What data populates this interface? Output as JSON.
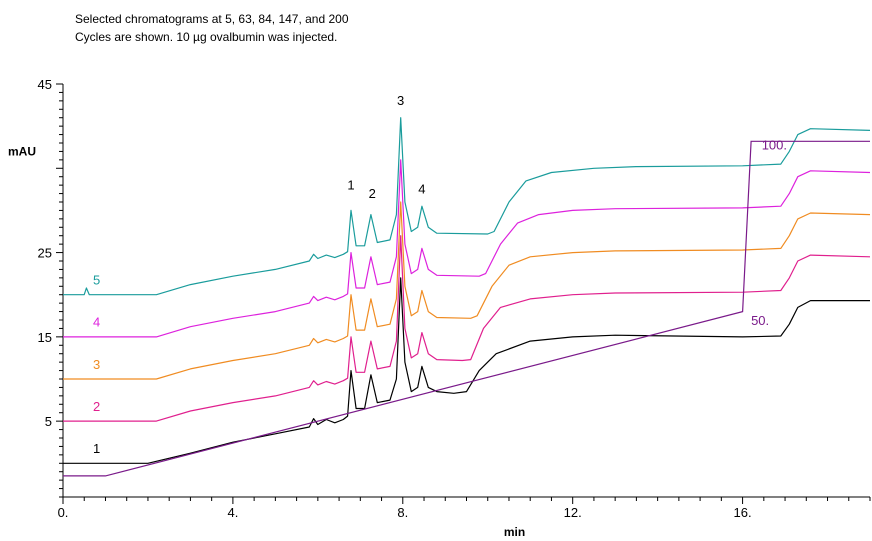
{
  "header": {
    "line1": "Selected chromatograms at 5, 63, 84, 147, and 200",
    "line2": "Cycles are shown. 10 µg ovalbumin was injected."
  },
  "chart_data": {
    "type": "line",
    "xlabel": "min",
    "ylabel": "mAU",
    "xlim": [
      0,
      19
    ],
    "ylim": [
      -4,
      45
    ],
    "xticks": [
      "0.",
      "4.",
      "8.",
      "12.",
      "16."
    ],
    "yticks": [
      "5",
      "15",
      "25",
      "45"
    ],
    "grid": false,
    "peak_labels": [
      {
        "text": "1",
        "x": 6.78,
        "y": 32.5
      },
      {
        "text": "2",
        "x": 7.28,
        "y": 31.5
      },
      {
        "text": "3",
        "x": 7.95,
        "y": 42.5
      },
      {
        "text": "4",
        "x": 8.45,
        "y": 32.0
      }
    ],
    "series": [
      {
        "name": "1",
        "color": "#000000",
        "baseline": 0,
        "points": [
          [
            0,
            0
          ],
          [
            2,
            0
          ],
          [
            3,
            1.2
          ],
          [
            4,
            2.5
          ],
          [
            5,
            3.5
          ],
          [
            5.8,
            4.3
          ],
          [
            5.9,
            5.3
          ],
          [
            6.0,
            4.6
          ],
          [
            6.2,
            5.2
          ],
          [
            6.4,
            4.8
          ],
          [
            6.6,
            5.2
          ],
          [
            6.7,
            5.6
          ],
          [
            6.78,
            11
          ],
          [
            6.9,
            6.5
          ],
          [
            7.1,
            6.5
          ],
          [
            7.25,
            10.5
          ],
          [
            7.4,
            7.2
          ],
          [
            7.7,
            7.5
          ],
          [
            7.85,
            10
          ],
          [
            7.95,
            22
          ],
          [
            8.05,
            12
          ],
          [
            8.2,
            8.5
          ],
          [
            8.35,
            9
          ],
          [
            8.45,
            11.5
          ],
          [
            8.6,
            9
          ],
          [
            8.8,
            8.5
          ],
          [
            9.2,
            8.3
          ],
          [
            9.5,
            8.5
          ],
          [
            9.8,
            11
          ],
          [
            10.2,
            13
          ],
          [
            11,
            14.5
          ],
          [
            12,
            15
          ],
          [
            13,
            15.2
          ],
          [
            16,
            15
          ],
          [
            16.9,
            15.1
          ],
          [
            17.1,
            16.5
          ],
          [
            17.3,
            18.5
          ],
          [
            17.6,
            19.3
          ],
          [
            19,
            19.3
          ]
        ]
      },
      {
        "name": "2",
        "color": "#e0208e",
        "baseline": 5,
        "points": [
          [
            0,
            5
          ],
          [
            2.2,
            5
          ],
          [
            3,
            6.2
          ],
          [
            4,
            7.2
          ],
          [
            5,
            8
          ],
          [
            5.8,
            9
          ],
          [
            5.9,
            9.8
          ],
          [
            6.0,
            9.3
          ],
          [
            6.2,
            9.7
          ],
          [
            6.4,
            9.4
          ],
          [
            6.6,
            9.8
          ],
          [
            6.7,
            10.1
          ],
          [
            6.78,
            15
          ],
          [
            6.9,
            10.8
          ],
          [
            7.1,
            10.8
          ],
          [
            7.25,
            14.5
          ],
          [
            7.4,
            11.2
          ],
          [
            7.7,
            11.5
          ],
          [
            7.85,
            14.5
          ],
          [
            7.95,
            27
          ],
          [
            8.05,
            16
          ],
          [
            8.2,
            12.5
          ],
          [
            8.35,
            13
          ],
          [
            8.45,
            15.5
          ],
          [
            8.6,
            13
          ],
          [
            8.8,
            12.3
          ],
          [
            9.4,
            12.2
          ],
          [
            9.6,
            12.3
          ],
          [
            9.9,
            16
          ],
          [
            10.3,
            18.5
          ],
          [
            11,
            19.5
          ],
          [
            12,
            20
          ],
          [
            13,
            20.2
          ],
          [
            16,
            20.3
          ],
          [
            16.9,
            20.5
          ],
          [
            17.1,
            22
          ],
          [
            17.3,
            24
          ],
          [
            17.6,
            24.7
          ],
          [
            19,
            24.5
          ]
        ]
      },
      {
        "name": "3",
        "color": "#f08c22",
        "baseline": 10,
        "points": [
          [
            0,
            10
          ],
          [
            2.2,
            10
          ],
          [
            3,
            11.2
          ],
          [
            4,
            12.2
          ],
          [
            5,
            13
          ],
          [
            5.8,
            14
          ],
          [
            5.9,
            14.8
          ],
          [
            6.0,
            14.3
          ],
          [
            6.2,
            14.7
          ],
          [
            6.4,
            14.4
          ],
          [
            6.6,
            14.8
          ],
          [
            6.7,
            15.1
          ],
          [
            6.78,
            20
          ],
          [
            6.9,
            15.8
          ],
          [
            7.1,
            15.8
          ],
          [
            7.25,
            19.5
          ],
          [
            7.4,
            16.2
          ],
          [
            7.7,
            16.5
          ],
          [
            7.85,
            19.5
          ],
          [
            7.95,
            31
          ],
          [
            8.05,
            21
          ],
          [
            8.2,
            17.5
          ],
          [
            8.35,
            18
          ],
          [
            8.45,
            20.5
          ],
          [
            8.6,
            18
          ],
          [
            8.8,
            17.3
          ],
          [
            9.6,
            17.2
          ],
          [
            9.75,
            17.5
          ],
          [
            10.1,
            21
          ],
          [
            10.5,
            23.5
          ],
          [
            11,
            24.5
          ],
          [
            12,
            25
          ],
          [
            13,
            25.2
          ],
          [
            16,
            25.3
          ],
          [
            16.9,
            25.5
          ],
          [
            17.1,
            27
          ],
          [
            17.3,
            29
          ],
          [
            17.6,
            29.7
          ],
          [
            19,
            29.5
          ]
        ]
      },
      {
        "name": "4",
        "color": "#dd22dd",
        "baseline": 15,
        "points": [
          [
            0,
            15
          ],
          [
            2.2,
            15
          ],
          [
            3,
            16.2
          ],
          [
            4,
            17.2
          ],
          [
            5,
            18
          ],
          [
            5.8,
            19
          ],
          [
            5.9,
            19.8
          ],
          [
            6.0,
            19.3
          ],
          [
            6.2,
            19.7
          ],
          [
            6.4,
            19.4
          ],
          [
            6.6,
            19.8
          ],
          [
            6.7,
            20.1
          ],
          [
            6.78,
            25
          ],
          [
            6.9,
            20.8
          ],
          [
            7.1,
            20.8
          ],
          [
            7.25,
            24.5
          ],
          [
            7.4,
            21.2
          ],
          [
            7.7,
            21.5
          ],
          [
            7.85,
            24.5
          ],
          [
            7.95,
            36
          ],
          [
            8.05,
            26
          ],
          [
            8.2,
            22.5
          ],
          [
            8.35,
            23
          ],
          [
            8.45,
            25.5
          ],
          [
            8.6,
            23
          ],
          [
            8.8,
            22.3
          ],
          [
            9.8,
            22.2
          ],
          [
            9.95,
            22.5
          ],
          [
            10.3,
            26
          ],
          [
            10.7,
            28.5
          ],
          [
            11.2,
            29.5
          ],
          [
            12,
            30
          ],
          [
            13,
            30.2
          ],
          [
            16,
            30.3
          ],
          [
            16.9,
            30.5
          ],
          [
            17.1,
            32
          ],
          [
            17.3,
            34
          ],
          [
            17.6,
            34.7
          ],
          [
            19,
            34.5
          ]
        ]
      },
      {
        "name": "5",
        "color": "#1a9c9c",
        "baseline": 20,
        "points": [
          [
            0,
            20
          ],
          [
            0.5,
            20
          ],
          [
            0.55,
            20.8
          ],
          [
            0.62,
            20
          ],
          [
            2.2,
            20
          ],
          [
            3,
            21.2
          ],
          [
            4,
            22.2
          ],
          [
            5,
            23
          ],
          [
            5.8,
            24
          ],
          [
            5.9,
            24.8
          ],
          [
            6.0,
            24.3
          ],
          [
            6.2,
            24.7
          ],
          [
            6.4,
            24.4
          ],
          [
            6.6,
            24.8
          ],
          [
            6.7,
            25.1
          ],
          [
            6.78,
            30
          ],
          [
            6.9,
            25.8
          ],
          [
            7.1,
            25.8
          ],
          [
            7.25,
            29.5
          ],
          [
            7.4,
            26.2
          ],
          [
            7.7,
            26.5
          ],
          [
            7.85,
            29.5
          ],
          [
            7.95,
            41
          ],
          [
            8.05,
            31
          ],
          [
            8.2,
            27.5
          ],
          [
            8.35,
            28
          ],
          [
            8.45,
            30.5
          ],
          [
            8.6,
            28
          ],
          [
            8.8,
            27.3
          ],
          [
            10.0,
            27.2
          ],
          [
            10.15,
            27.5
          ],
          [
            10.5,
            31
          ],
          [
            10.9,
            33.5
          ],
          [
            11.5,
            34.5
          ],
          [
            12.5,
            35
          ],
          [
            13.5,
            35.2
          ],
          [
            16,
            35.3
          ],
          [
            16.9,
            35.5
          ],
          [
            17.1,
            37
          ],
          [
            17.3,
            39
          ],
          [
            17.6,
            39.7
          ],
          [
            19,
            39.5
          ]
        ]
      }
    ],
    "gradient": {
      "color": "#7a1a8a",
      "labels": [
        {
          "text": "50.",
          "x": 16.2,
          "y": 17
        },
        {
          "text": "100.",
          "x": 16.45,
          "y": 37.8
        }
      ],
      "points": [
        [
          0,
          -1.5
        ],
        [
          1,
          -1.5
        ],
        [
          16,
          18
        ],
        [
          16.2,
          38.2
        ],
        [
          19,
          38.2
        ]
      ]
    }
  }
}
